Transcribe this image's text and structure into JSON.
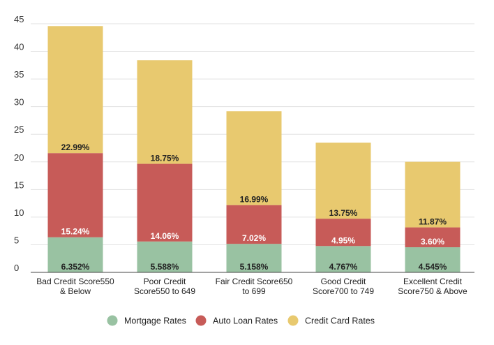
{
  "chart_data": {
    "type": "bar",
    "stacked": true,
    "title": "",
    "xlabel": "",
    "ylabel": "",
    "ylim": [
      0,
      45
    ],
    "yticks": [
      0,
      5,
      10,
      15,
      20,
      25,
      30,
      35,
      40,
      45
    ],
    "grid": true,
    "legend_position": "bottom",
    "categories": [
      [
        "Bad Credit Score550",
        "& Below"
      ],
      [
        "Poor Credit",
        "Score550 to 649"
      ],
      [
        "Fair Credit Score650",
        "to 699"
      ],
      [
        "Good Credit",
        "Score700 to 749"
      ],
      [
        "Excellent Credit",
        "Score750 & Above"
      ]
    ],
    "series": [
      {
        "name": "Mortgage Rates",
        "color": "#99c2a2",
        "values": [
          6.352,
          5.588,
          5.158,
          4.767,
          4.545
        ],
        "labels": [
          "6.352%",
          "5.588%",
          "5.158%",
          "4.767%",
          "4.545%"
        ]
      },
      {
        "name": "Auto Loan Rates",
        "color": "#c75b58",
        "values": [
          15.24,
          14.06,
          7.02,
          4.95,
          3.6
        ],
        "labels": [
          "15.24%",
          "14.06%",
          "7.02%",
          "4.95%",
          "3.60%"
        ]
      },
      {
        "name": "Credit Card Rates",
        "color": "#e8c96f",
        "values": [
          22.99,
          18.75,
          16.99,
          13.75,
          11.87
        ],
        "labels": [
          "22.99%",
          "18.75%",
          "16.99%",
          "13.75%",
          "11.87%"
        ]
      }
    ]
  }
}
